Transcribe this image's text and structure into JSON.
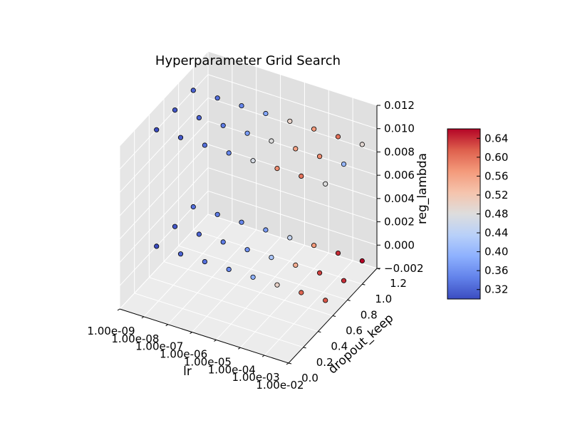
{
  "chart_data": {
    "type": "scatter",
    "projection": "3d",
    "title": "Hyperparameter Grid Search",
    "xlabel": "lr",
    "ylabel": "dropout_keep",
    "zlabel": "reg_lambda",
    "x_scale": "log",
    "xlim": [
      1e-09,
      0.01
    ],
    "ylim": [
      0.0,
      1.2
    ],
    "zlim": [
      -0.002,
      0.012
    ],
    "x_ticks": [
      "1.00e-09",
      "1.00e-08",
      "1.00e-07",
      "1.00e-06",
      "1.00e-05",
      "1.00e-04",
      "1.00e-03",
      "1.00e-02"
    ],
    "y_ticks": [
      "0.0",
      "0.2",
      "0.4",
      "0.6",
      "0.8",
      "1.0",
      "1.2"
    ],
    "z_ticks": [
      "−0.002",
      "0.000",
      "0.002",
      "0.004",
      "0.006",
      "0.008",
      "0.010",
      "0.012"
    ],
    "grid": true,
    "lr_values": [
      1e-09,
      1e-08,
      1e-07,
      1e-06,
      1e-05,
      0.0001,
      0.001,
      0.01
    ],
    "dropout_keep_values": [
      0.5,
      0.75,
      1.0
    ],
    "reg_lambda_values": [
      0.0,
      0.01
    ],
    "series": [
      {
        "reg_lambda": 0.0,
        "dropout_keep": 0.5,
        "accuracy": [
          0.3,
          0.32,
          0.33,
          0.35,
          0.39,
          0.5,
          0.61,
          0.62
        ]
      },
      {
        "reg_lambda": 0.0,
        "dropout_keep": 0.75,
        "accuracy": [
          0.31,
          0.32,
          0.34,
          0.36,
          0.42,
          0.55,
          0.63,
          0.64
        ]
      },
      {
        "reg_lambda": 0.0,
        "dropout_keep": 1.0,
        "accuracy": [
          0.33,
          0.34,
          0.35,
          0.37,
          0.45,
          0.57,
          0.64,
          0.66
        ]
      },
      {
        "reg_lambda": 0.01,
        "dropout_keep": 0.5,
        "accuracy": [
          0.3,
          0.31,
          0.33,
          0.35,
          0.47,
          0.58,
          0.6,
          0.48
        ]
      },
      {
        "reg_lambda": 0.01,
        "dropout_keep": 0.75,
        "accuracy": [
          0.31,
          0.32,
          0.34,
          0.37,
          0.48,
          0.56,
          0.58,
          0.4
        ]
      },
      {
        "reg_lambda": 0.01,
        "dropout_keep": 1.0,
        "accuracy": [
          0.32,
          0.33,
          0.35,
          0.38,
          0.5,
          0.57,
          0.6,
          0.49
        ]
      }
    ],
    "colorbar": {
      "colormap": "coolwarm",
      "range": [
        0.3,
        0.66
      ],
      "ticks": [
        "0.32",
        "0.36",
        "0.40",
        "0.44",
        "0.48",
        "0.52",
        "0.56",
        "0.60",
        "0.64"
      ],
      "tick_values": [
        0.32,
        0.36,
        0.4,
        0.44,
        0.48,
        0.52,
        0.56,
        0.6,
        0.64
      ],
      "placement": "right"
    }
  },
  "colors": {
    "pane_left": "#e6e6e6",
    "pane_right": "#e0e0e0",
    "pane_floor": "#ececec",
    "grid": "#ffffff",
    "axis": "#000000",
    "text": "#000000"
  }
}
